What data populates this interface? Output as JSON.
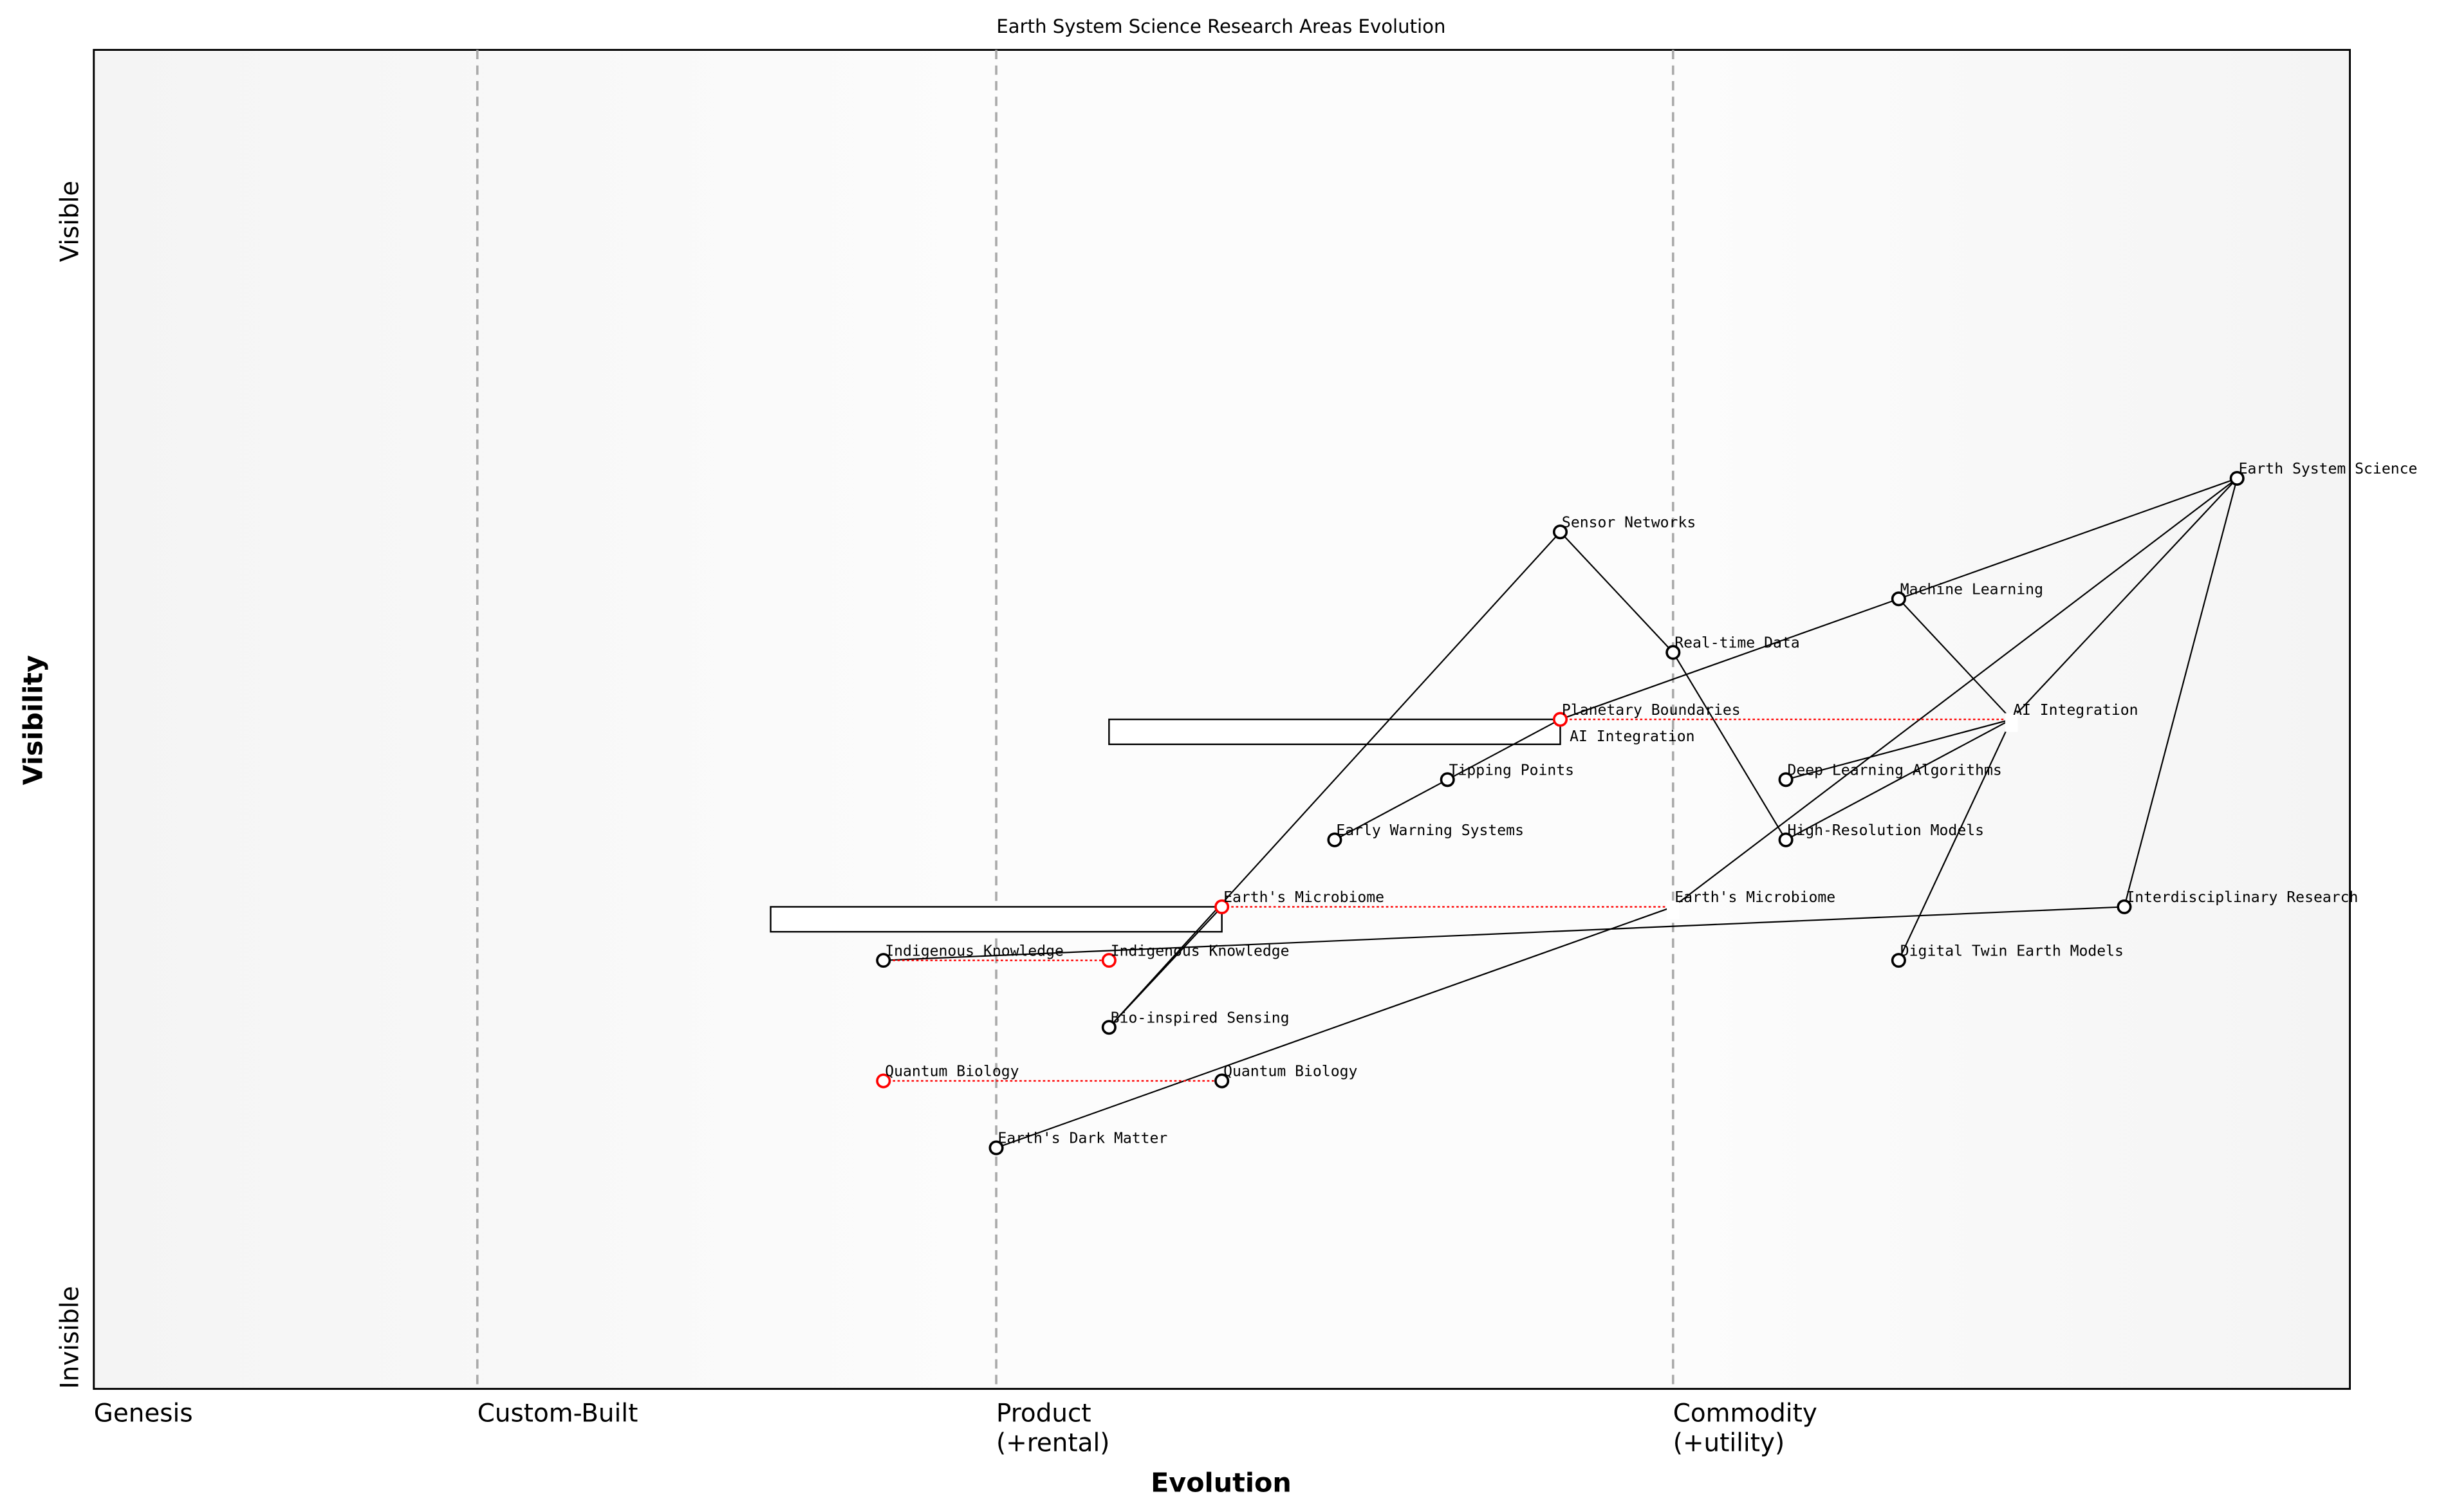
{
  "title": "Earth System Science Research Areas Evolution",
  "x_axis": {
    "label": "Evolution",
    "stages": [
      "Genesis",
      "Custom-Built",
      "Product\n(+rental)",
      "Commodity\n(+utility)"
    ],
    "stage_positions": [
      0,
      0.17,
      0.4,
      0.7
    ]
  },
  "y_axis": {
    "label": "Visibility",
    "top": "Visible",
    "bottom": "Invisible"
  },
  "colors": {
    "node": "#000000",
    "evolving": "#ff0000",
    "divider": "#aaaaaa"
  },
  "nodes": [
    {
      "id": "ess",
      "name": "Earth System Science",
      "evolution": 0.95,
      "visibility": 0.68
    },
    {
      "id": "sensor",
      "name": "Sensor Networks",
      "evolution": 0.65,
      "visibility": 0.64
    },
    {
      "id": "ml",
      "name": "Machine Learning",
      "evolution": 0.8,
      "visibility": 0.59
    },
    {
      "id": "rtd",
      "name": "Real-time Data",
      "evolution": 0.7,
      "visibility": 0.55
    },
    {
      "id": "pb",
      "name": "Planetary Boundaries",
      "evolution": 0.65,
      "visibility": 0.5,
      "evolving": true
    },
    {
      "id": "ai_old",
      "name": "AI Integration",
      "evolution": 0.65,
      "visibility": 0.5,
      "evolving": true
    },
    {
      "id": "ai",
      "name": "AI Integration",
      "evolution": 0.85,
      "visibility": 0.5,
      "target": true
    },
    {
      "id": "tp",
      "name": "Tipping Points",
      "evolution": 0.6,
      "visibility": 0.455
    },
    {
      "id": "dla",
      "name": "Deep Learning Algorithms",
      "evolution": 0.75,
      "visibility": 0.455
    },
    {
      "id": "ews",
      "name": "Early Warning Systems",
      "evolution": 0.55,
      "visibility": 0.41
    },
    {
      "id": "hrm",
      "name": "High-Resolution Models",
      "evolution": 0.75,
      "visibility": 0.41
    },
    {
      "id": "em",
      "name": "Earth's Microbiome",
      "evolution": 0.5,
      "visibility": 0.36,
      "evolving": true
    },
    {
      "id": "em_t",
      "name": "Earth's Microbiome",
      "evolution": 0.7,
      "visibility": 0.36,
      "target": true
    },
    {
      "id": "ir",
      "name": "Interdisciplinary Research",
      "evolution": 0.9,
      "visibility": 0.36
    },
    {
      "id": "ik",
      "name": "Indigenous Knowledge",
      "evolution": 0.35,
      "visibility": 0.32
    },
    {
      "id": "ik_r",
      "name": "Indigenous Knowledge",
      "evolution": 0.45,
      "visibility": 0.32,
      "evolving": true
    },
    {
      "id": "dt",
      "name": "Digital Twin Earth Models",
      "evolution": 0.8,
      "visibility": 0.32
    },
    {
      "id": "bis",
      "name": "Bio-inspired Sensing",
      "evolution": 0.45,
      "visibility": 0.27
    },
    {
      "id": "qb_r",
      "name": "Quantum Biology",
      "evolution": 0.35,
      "visibility": 0.23,
      "evolving": true
    },
    {
      "id": "qb",
      "name": "Quantum Biology",
      "evolution": 0.5,
      "visibility": 0.23
    },
    {
      "id": "edm",
      "name": "Earth's Dark Matter",
      "evolution": 0.4,
      "visibility": 0.18
    }
  ],
  "links": [
    [
      "ess",
      "ml"
    ],
    [
      "ess",
      "ai"
    ],
    [
      "ess",
      "ir"
    ],
    [
      "ess",
      "em_t"
    ],
    [
      "ml",
      "ai"
    ],
    [
      "ml",
      "pb"
    ],
    [
      "sensor",
      "rtd"
    ],
    [
      "rtd",
      "hrm"
    ],
    [
      "sensor",
      "bis"
    ],
    [
      "ai",
      "dla"
    ],
    [
      "ai",
      "hrm"
    ],
    [
      "ai",
      "dt"
    ],
    [
      "pb",
      "tp"
    ],
    [
      "tp",
      "ews"
    ],
    [
      "ir",
      "ik"
    ],
    [
      "em",
      "bis"
    ],
    [
      "em_t",
      "edm"
    ]
  ],
  "evolve_links": [
    [
      "pb",
      "ai"
    ],
    [
      "em",
      "em_t"
    ],
    [
      "ik",
      "ik_r"
    ],
    [
      "qb_r",
      "qb"
    ]
  ],
  "inertia_boxes": [
    {
      "from_evolution": 0.45,
      "to_evolution": 0.65,
      "visibility": 0.5
    },
    {
      "from_evolution": 0.3,
      "to_evolution": 0.5,
      "visibility": 0.36
    }
  ]
}
